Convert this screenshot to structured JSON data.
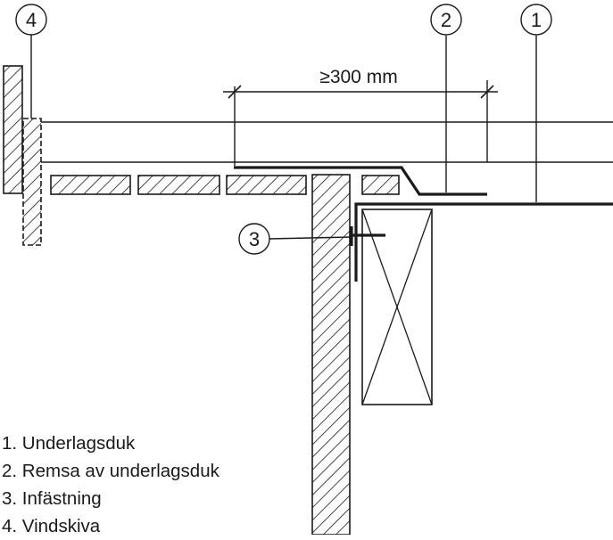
{
  "dimension_label": "≥300 mm",
  "callouts": [
    "4",
    "2",
    "1",
    "3"
  ],
  "legend": [
    "1. Underlagsduk",
    "2. Remsa av underlagsduk",
    "3. Infästning",
    "4. Vindskiva"
  ]
}
